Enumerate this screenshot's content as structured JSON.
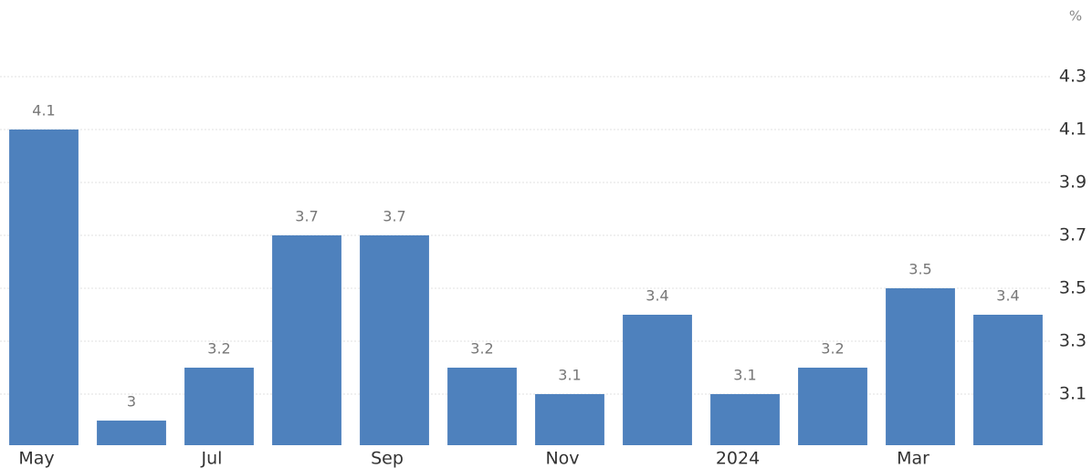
{
  "chart_data": {
    "type": "bar",
    "unit": "%",
    "categories": [
      "May",
      null,
      "Jul",
      null,
      "Sep",
      null,
      "Nov",
      null,
      "2024",
      null,
      "Mar",
      null
    ],
    "values": [
      4.1,
      3,
      3.2,
      3.7,
      3.7,
      3.2,
      3.1,
      3.4,
      3.1,
      3.2,
      3.5,
      3.4
    ],
    "color": "#4e81bd",
    "ylim": [
      2.907,
      4.417
    ],
    "yticks": [
      3.1,
      3.3,
      3.5,
      3.7,
      3.9,
      4.1,
      4.3
    ],
    "grid": true,
    "data_labels": true
  }
}
